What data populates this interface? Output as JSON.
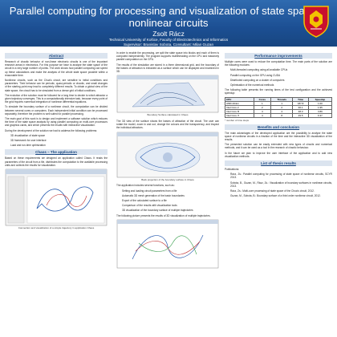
{
  "header": {
    "title": "Parallel computing for processing and visualization of state space of nonlinear circuits",
    "author": "Zsolt Rácz",
    "affiliation": "Technical University of Košice, Faculty of Electrotechnics and Informatics",
    "supervisor": "Supervisor: Branislav Sobota, Consultant: Milan Guzan"
  },
  "col1": {
    "abstract_title": "Abstract",
    "abstract_text": "Research of chaotic behavior of non-linear electronic circuits is one of the important research areas in electronics. For this purpose we have to analyse the state space of the circuit in a very large number of points. The work shows how parallel computing can speed up these calculations and make the analysis of the whole state space possible within a reasonable time.",
    "intro_text_1": "Nonlinear circuits, such as the Chua's circuit, are sensitive to initial conditions and parameters. Their behavior can be periodic, quasi-periodic or chaotic, and small changes of the starting point may lead to completely different results. To obtain a global view of the state space, the circuit has to be simulated from a dense grid of initial conditions.",
    "intro_text_2": "The evolution of the solution must be followed for a long time to decide to which attractor a given trajectory converges. This is a computationally intensive task, because every point of the grid requires numerical integration of nonlinear differential equations.",
    "intro_text_3": "To simulate the boundary surface of a nonlinear circuit, the computation can be divided between several cores or computers. Each independent initial condition can be processed separately, therefore the problem is well suited for parallel processing.",
    "goal_title": "The main goal of this work is",
    "goal_text": "The main goal of this work is to design and implement a software solution which reduces the time of the state space analysis by using parallel computing on multi-core processors and graphics cards, and which presents the results with interactive visualization.",
    "sub_goals_intro": "During the development of the solution we had to address the following problems:",
    "sub_goals": [
      "3D visualization of state space",
      "3D framework for user interface",
      "Load and run-time optimization"
    ],
    "chaos_title": "Chaos – The application",
    "chaos_text": "Based on these requirements we designed an application called Chaos. It reads the parameters of the circuit from a file, distributes the computation to the available processing units and collects the results for visualization.",
    "fig1_caption": "Connection and visualization of a simple trajectory in application Chaos"
  },
  "col2": {
    "intro_text": "In order to enable the processing, we split the state space into blocks and each of them is computed independently. The program supports multithreading on the CPU and massively parallel computation on the GPU.",
    "intro_text_2": "The results of the simulation are stored in a three dimensional grid, and the boundary of the basins of attraction is extracted as a surface which can be displayed and examined in 3D.",
    "fig2_caption": "Boundary Surface calculated in Chaos",
    "mid_text": "The 3D view of the surface shows the basins of attraction of the circuit. The user can rotate the model, zoom in and out, change the colours and the transparency, and inspect the individual attractors.",
    "fig3_caption": "Back projection of the boundary surface in Chaos",
    "features_intro": "The application includes several functions, such as:",
    "features": [
      "Setting and loading circuit parameters from a file",
      "Automatic 3D mesh generation of the basin boundaries",
      "Export of the calculated surface to a file",
      "Comparison of the results with visualization tools",
      "3D visualization of the boundary surface of multiple trajectories"
    ],
    "bottom_text": "The following picture presents the results of 3D visualization of multiple trajectories."
  },
  "col3": {
    "perf_title": "Performance improvements",
    "perf_text": "Multiple cores were used to reduce the computation time. The main parts of the solution are the following modules:",
    "perf_items": [
      "Multi-threaded computing using all available CPUs",
      "Parallel computing on the GPU using CUDA",
      "Distributed computing on a cluster of computers",
      "Optimisation of the numerical methods"
    ],
    "table_intro": "The following table presents the running times of the test configuration and the achieved speedup:",
    "table": {
      "headers": [
        "CPU",
        "Cores",
        "Threads",
        "Time",
        "Speedup"
      ],
      "rows": [
        [
          "AMD Athlon",
          "1",
          "1",
          "187.8",
          "1.00"
        ],
        [
          "Intel Core 2",
          "2",
          "2",
          "96.1",
          "1.95"
        ],
        [
          "Intel Core i5",
          "4",
          "4",
          "48.3",
          "3.89"
        ],
        [
          "Intel Core i7",
          "4",
          "8",
          "29.5",
          "6.37"
        ]
      ]
    },
    "table_note": "* number of time steps",
    "conclusion_title": "Benefits and conclusion",
    "conclusion_text_1": "The main advantages of the developed application are the possibility to analyse the state space of nonlinear circuits in a fraction of the time and the interactive 3D visualization of the results.",
    "conclusion_text_2": "The presented solution can be easily extended with new types of circuits and numerical methods, and it can be used as a tool in the research of chaotic behaviour.",
    "conclusion_text_3": "In the future we plan to improve the user interface of the application and to add new visualization methods.",
    "pubs_title": "List of thesis results",
    "pubs_intro": "Publications:",
    "pubs": [
      "Rácz, Zs.: Parallel computing for processing of state space of nonlinear circuits, SCYR 2013.",
      "Sobota, B., Guzan, M., Rácz, Zs.: Visualization of boundary surfaces in nonlinear circuits, 2013.",
      "Rácz, Zs.: Multi-core processing of state space of the Chua's circuit, 2012.",
      "Guzan, M., Sobota, B.: Boundary surface of a third order nonlinear circuit, 2012."
    ]
  }
}
